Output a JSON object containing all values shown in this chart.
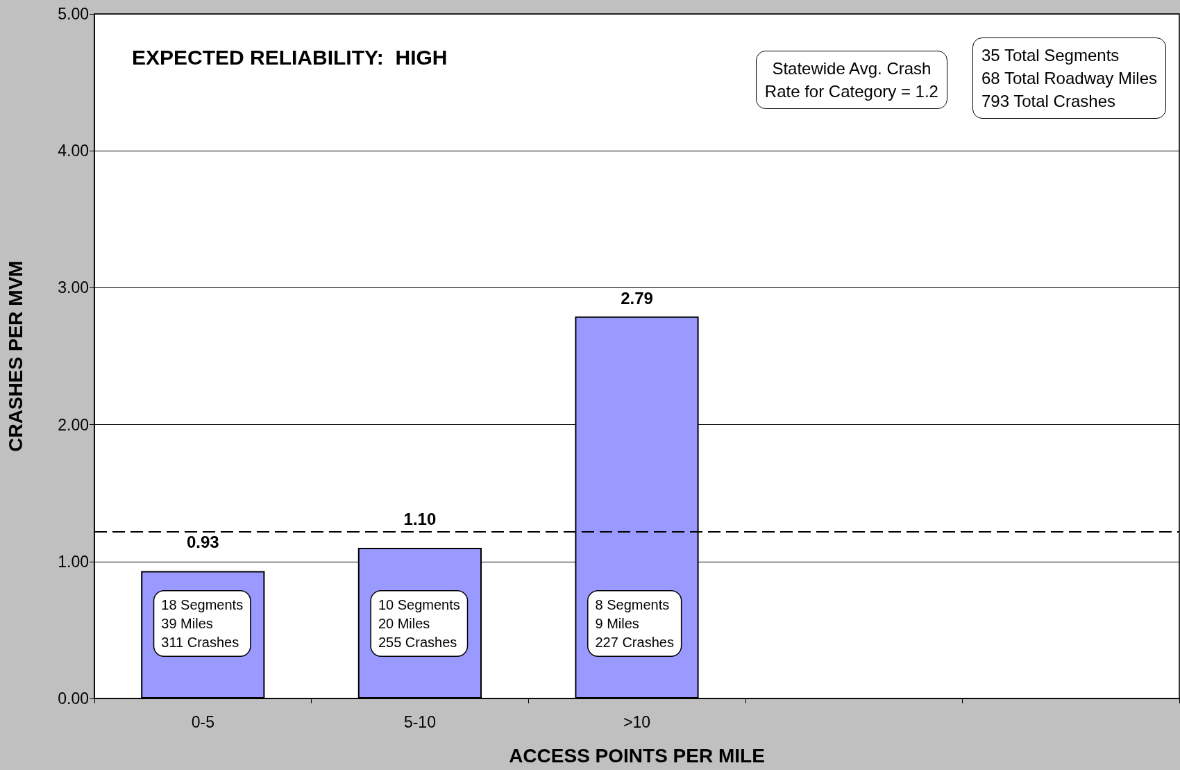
{
  "chart_data": {
    "type": "bar",
    "title": "EXPECTED RELIABILITY:  HIGH",
    "xlabel": "ACCESS POINTS PER MILE",
    "ylabel": "CRASHES PER MVM",
    "categories": [
      "0-5",
      "5-10",
      ">10",
      null,
      null
    ],
    "values": [
      0.93,
      1.1,
      2.79,
      null,
      null
    ],
    "value_labels": [
      "0.93",
      "1.10",
      "2.79",
      null,
      null
    ],
    "color": "#9999ff",
    "ylim": [
      0,
      5
    ],
    "yticks": [
      {
        "value": 0,
        "label": "0.00"
      },
      {
        "value": 1,
        "label": "1.00"
      },
      {
        "value": 2,
        "label": "2.00"
      },
      {
        "value": 3,
        "label": "3.00"
      },
      {
        "value": 4,
        "label": "4.00"
      },
      {
        "value": 5,
        "label": "5.00"
      }
    ],
    "grid": "y",
    "ref_lines": [
      {
        "axis": "y",
        "value": 1.22,
        "color": "#000000",
        "line_style": "dashed"
      }
    ],
    "annotations": [
      "Statewide Avg. Crash\nRate for Category = 1.2",
      "35 Total Segments\n68 Total Roadway Miles\n793 Total Crashes",
      "18 Segments\n39 Miles\n311 Crashes",
      "10 Segments\n20 Miles\n255 Crashes",
      "8 Segments\n9 Miles\n227 Crashes"
    ]
  }
}
